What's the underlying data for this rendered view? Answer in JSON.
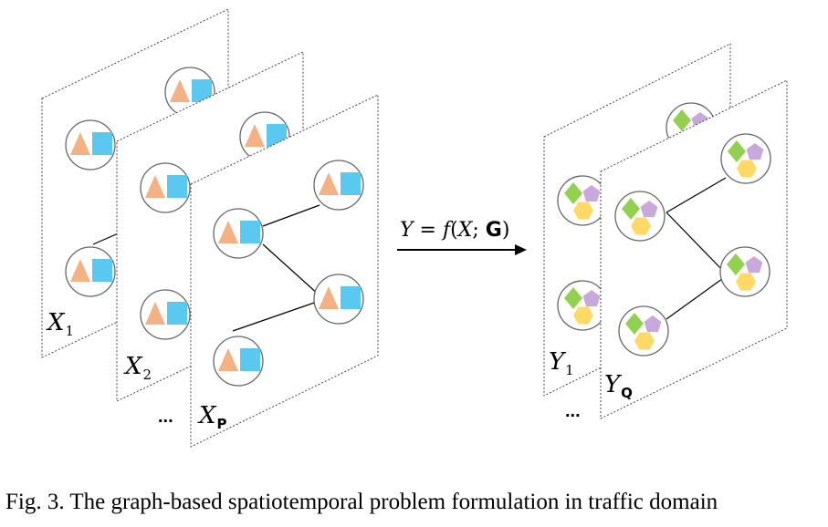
{
  "inputs": {
    "frame_1": {
      "label_letter": "X",
      "label_sub": "1"
    },
    "frame_2": {
      "label_letter": "X",
      "label_sub": "2"
    },
    "frame_p": {
      "label_letter": "X",
      "label_sub": "P"
    },
    "ellipsis": "..."
  },
  "outputs": {
    "frame_1": {
      "label_letter": "Y",
      "label_sub": "1"
    },
    "frame_q": {
      "label_letter": "Y",
      "label_sub": "Q"
    },
    "ellipsis": "..."
  },
  "formula": {
    "lhs": "Y",
    "eq": " = ",
    "func": "f",
    "open": "(",
    "arg": "X",
    "sep": "; ",
    "graph": "G",
    "close": ")"
  },
  "caption": "Fig. 3.  The graph-based spatiotemporal problem formulation in traffic domain",
  "colors": {
    "triangle": "#F4B183",
    "square": "#5BC8EF",
    "diamond": "#92D050",
    "pentagon": "#C9A8DB",
    "hexagon": "#FFD966"
  }
}
